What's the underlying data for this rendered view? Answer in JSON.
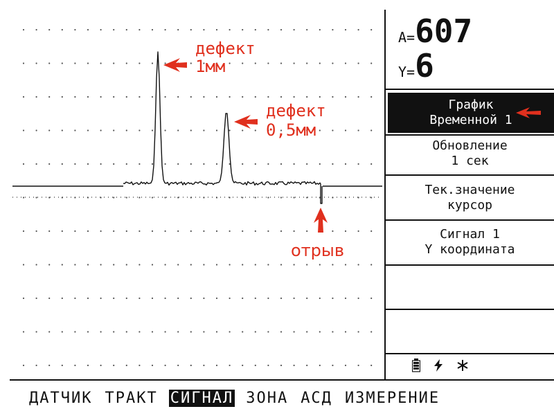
{
  "readouts": {
    "a_label": "A=",
    "a_value": "607",
    "y_label": "Y=",
    "y_value": "6"
  },
  "menu": {
    "graph_line1": "График",
    "graph_line2": "Временной 1",
    "update_line1": "Обновление",
    "update_line2": "1 сек",
    "current_line1": "Тек.значение",
    "current_line2": "курсор",
    "signal_line1": "Сигнал 1",
    "signal_line2": "Y координата"
  },
  "annotations": {
    "defect1_line1": "дефект",
    "defect1_line2": "1мм",
    "defect2_line1": "дефект",
    "defect2_line2": "0,5мм",
    "break": "отрыв"
  },
  "status_icons": [
    "battery-icon",
    "lightning-icon",
    "asterisk-icon"
  ],
  "bottom_menu": {
    "items": [
      "ДАТЧИК",
      "ТРАКТ",
      "СИГНАЛ",
      "ЗОНА",
      "АСД",
      "ИЗМЕРЕНИЕ"
    ],
    "active": "СИГНАЛ"
  },
  "colors": {
    "annotation": "#e0301e",
    "foreground": "#111111",
    "background": "#ffffff"
  }
}
